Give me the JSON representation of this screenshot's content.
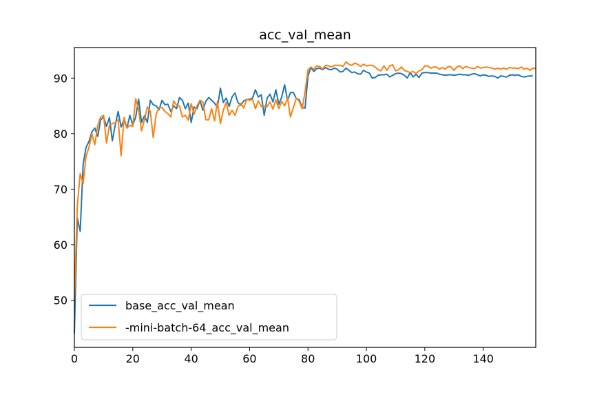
{
  "chart_data": {
    "type": "line",
    "title": "acc_val_mean",
    "xlabel": "",
    "ylabel": "",
    "xlim": [
      0,
      158
    ],
    "ylim": [
      41.5,
      95.5
    ],
    "xticks": [
      0,
      20,
      40,
      60,
      80,
      100,
      120,
      140
    ],
    "yticks": [
      50,
      60,
      70,
      80,
      90
    ],
    "grid": false,
    "legend_position": "lower-left",
    "series": [
      {
        "name": "base_acc_val_mean",
        "color": "#1f77b4",
        "values": [
          44.0,
          64.8,
          62.4,
          74.5,
          77.5,
          78.6,
          80.3,
          81.0,
          79.5,
          82.5,
          83.0,
          81.3,
          82.9,
          78.7,
          81.6,
          84.0,
          81.2,
          82.5,
          81.0,
          83.3,
          81.5,
          83.0,
          86.2,
          82.0,
          83.2,
          82.0,
          86.0,
          85.2,
          85.0,
          84.3,
          86.0,
          85.2,
          85.3,
          84.0,
          85.0,
          84.5,
          86.5,
          86.0,
          84.5,
          85.5,
          82.0,
          84.8,
          84.5,
          86.0,
          84.2,
          85.8,
          86.5,
          86.0,
          85.5,
          84.7,
          88.2,
          85.6,
          86.4,
          84.9,
          86.6,
          87.3,
          85.6,
          85.1,
          85.9,
          86.1,
          86.2,
          86.4,
          87.9,
          86.6,
          87.0,
          83.3,
          86.4,
          87.1,
          85.7,
          87.9,
          85.3,
          86.6,
          88.8,
          86.0,
          87.4,
          87.4,
          86.3,
          86.1,
          84.7,
          84.6,
          90.4,
          91.9,
          91.2,
          91.7,
          91.8,
          91.5,
          91.9,
          91.6,
          91.5,
          91.8,
          91.6,
          91.1,
          91.2,
          91.8,
          91.4,
          91.0,
          91.1,
          90.8,
          90.7,
          91.4,
          91.1,
          90.9,
          90.0,
          90.1,
          90.5,
          90.6,
          90.6,
          90.7,
          90.2,
          90.5,
          90.8,
          90.9,
          90.8,
          90.5,
          90.0,
          91.0,
          90.2,
          90.7,
          90.1,
          90.9,
          91.0,
          91.0,
          90.9,
          90.9,
          90.9,
          90.7,
          90.6,
          90.5,
          90.6,
          90.6,
          90.5,
          90.6,
          90.7,
          90.6,
          90.6,
          90.5,
          90.7,
          90.8,
          90.6,
          90.4,
          90.6,
          90.5,
          90.3,
          90.4,
          90.3,
          90.0,
          90.4,
          90.3,
          90.2,
          90.5,
          90.6,
          90.5,
          90.6,
          90.3,
          90.2,
          90.3,
          90.4,
          90.4
        ]
      },
      {
        "name": "-mini-batch-64_acc_val_mean",
        "color": "#ff7f0e",
        "values": [
          50.0,
          67.0,
          72.8,
          71.0,
          76.0,
          77.5,
          80.0,
          78.0,
          81.5,
          83.0,
          83.3,
          78.3,
          81.5,
          81.8,
          82.0,
          82.5,
          76.0,
          82.9,
          81.0,
          81.5,
          81.3,
          86.3,
          84.3,
          80.5,
          82.5,
          84.8,
          84.0,
          79.3,
          83.5,
          84.7,
          84.7,
          84.0,
          83.6,
          83.0,
          85.9,
          85.1,
          85.0,
          83.0,
          83.3,
          82.4,
          85.4,
          83.5,
          85.0,
          86.0,
          85.7,
          82.5,
          82.5,
          84.5,
          82.3,
          85.8,
          81.8,
          84.2,
          85.6,
          83.3,
          84.2,
          83.3,
          84.8,
          85.5,
          84.6,
          86.2,
          86.0,
          86.2,
          84.5,
          85.9,
          84.9,
          84.9,
          84.9,
          85.7,
          84.4,
          86.1,
          84.5,
          85.8,
          85.0,
          86.4,
          83.0,
          84.7,
          86.4,
          85.8,
          84.5,
          87.5,
          91.5,
          92.0,
          91.6,
          92.2,
          92.1,
          91.6,
          92.3,
          92.2,
          92.0,
          92.3,
          92.3,
          92.3,
          92.1,
          92.9,
          92.5,
          92.3,
          92.7,
          92.5,
          92.1,
          92.5,
          92.2,
          92.3,
          92.3,
          92.0,
          91.5,
          91.3,
          92.2,
          91.4,
          92.2,
          92.4,
          91.3,
          91.5,
          92.0,
          91.4,
          91.2,
          91.0,
          91.2,
          90.8,
          91.3,
          91.5,
          92.2,
          92.2,
          91.8,
          92.0,
          92.0,
          91.6,
          91.9,
          91.6,
          92.1,
          92.0,
          91.4,
          92.0,
          92.2,
          91.7,
          92.1,
          91.9,
          91.8,
          91.7,
          92.1,
          91.8,
          91.9,
          92.0,
          91.9,
          91.8,
          91.6,
          91.8,
          91.6,
          91.8,
          91.6,
          91.9,
          91.8,
          91.8,
          91.7,
          92.0,
          91.6,
          91.8,
          91.4,
          91.8,
          91.7
        ]
      }
    ]
  }
}
